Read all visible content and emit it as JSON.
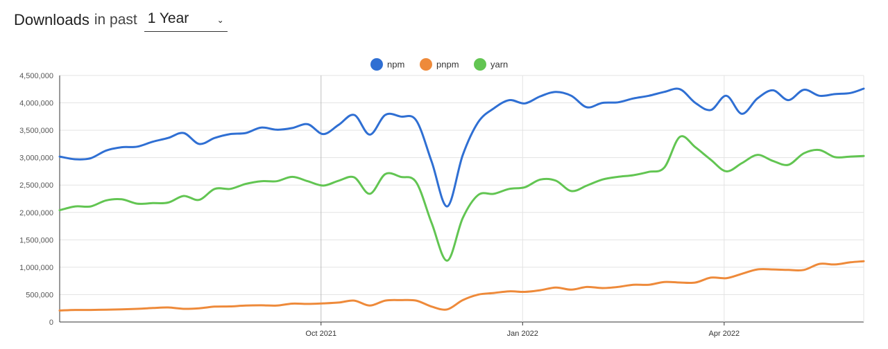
{
  "header": {
    "title": "Downloads",
    "subtitle": "in past",
    "period": {
      "selected": "1 Year"
    }
  },
  "colors": {
    "npm": "#2f6fd3",
    "pnpm": "#ee8a3a",
    "yarn": "#62c552"
  },
  "chart_data": {
    "type": "line",
    "title": "",
    "xlabel": "",
    "ylabel": "",
    "ylim": [
      0,
      4500000
    ],
    "yticks": [
      0,
      500000,
      1000000,
      1500000,
      2000000,
      2500000,
      3000000,
      3500000,
      4000000,
      4500000
    ],
    "ytick_labels": [
      "0",
      "500,000",
      "1,000,000",
      "1,500,000",
      "2,000,000",
      "2,500,000",
      "3,000,000",
      "3,500,000",
      "4,000,000",
      "4,500,000"
    ],
    "xlim": [
      "2021-06-07",
      "2022-06-05"
    ],
    "xticks": [
      {
        "date": "2021-10-03",
        "label": "Oct 2021"
      },
      {
        "date": "2022-01-02",
        "label": "Jan 2022"
      },
      {
        "date": "2022-04-03",
        "label": "Apr 2022"
      }
    ],
    "grid": true,
    "legend": "top-center",
    "x": [
      "2021-06-07",
      "2021-06-14",
      "2021-06-21",
      "2021-06-28",
      "2021-07-05",
      "2021-07-12",
      "2021-07-19",
      "2021-07-26",
      "2021-08-02",
      "2021-08-09",
      "2021-08-16",
      "2021-08-23",
      "2021-08-30",
      "2021-09-06",
      "2021-09-13",
      "2021-09-20",
      "2021-09-27",
      "2021-10-04",
      "2021-10-11",
      "2021-10-18",
      "2021-10-25",
      "2021-11-01",
      "2021-11-08",
      "2021-11-15",
      "2021-11-22",
      "2021-11-29",
      "2021-12-06",
      "2021-12-13",
      "2021-12-20",
      "2021-12-27",
      "2022-01-03",
      "2022-01-10",
      "2022-01-17",
      "2022-01-24",
      "2022-01-31",
      "2022-02-07",
      "2022-02-14",
      "2022-02-21",
      "2022-02-28",
      "2022-03-07",
      "2022-03-14",
      "2022-03-21",
      "2022-03-28",
      "2022-04-04",
      "2022-04-11",
      "2022-04-18",
      "2022-04-25",
      "2022-05-02",
      "2022-05-09",
      "2022-05-16",
      "2022-05-23",
      "2022-05-30",
      "2022-06-05"
    ],
    "series": [
      {
        "name": "npm",
        "values": [
          3020000,
          2970000,
          2990000,
          3130000,
          3190000,
          3200000,
          3290000,
          3360000,
          3450000,
          3250000,
          3360000,
          3430000,
          3450000,
          3550000,
          3510000,
          3540000,
          3610000,
          3430000,
          3600000,
          3780000,
          3420000,
          3780000,
          3750000,
          3680000,
          2920000,
          2110000,
          3050000,
          3650000,
          3900000,
          4050000,
          3990000,
          4120000,
          4200000,
          4130000,
          3920000,
          4000000,
          4010000,
          4080000,
          4130000,
          4200000,
          4250000,
          4000000,
          3870000,
          4130000,
          3800000,
          4080000,
          4230000,
          4050000,
          4240000,
          4130000,
          4160000,
          4180000,
          4260000
        ]
      },
      {
        "name": "pnpm",
        "values": [
          210000,
          220000,
          220000,
          225000,
          230000,
          240000,
          255000,
          265000,
          240000,
          250000,
          280000,
          285000,
          300000,
          305000,
          300000,
          335000,
          330000,
          340000,
          355000,
          390000,
          300000,
          390000,
          400000,
          390000,
          280000,
          230000,
          400000,
          500000,
          530000,
          560000,
          550000,
          580000,
          630000,
          590000,
          640000,
          620000,
          640000,
          680000,
          680000,
          730000,
          720000,
          720000,
          810000,
          800000,
          880000,
          960000,
          960000,
          950000,
          950000,
          1060000,
          1050000,
          1090000,
          1110000
        ]
      },
      {
        "name": "yarn",
        "values": [
          2040000,
          2110000,
          2110000,
          2220000,
          2240000,
          2160000,
          2170000,
          2180000,
          2300000,
          2230000,
          2430000,
          2430000,
          2520000,
          2570000,
          2570000,
          2650000,
          2570000,
          2490000,
          2580000,
          2640000,
          2340000,
          2700000,
          2650000,
          2550000,
          1800000,
          1120000,
          1900000,
          2320000,
          2340000,
          2430000,
          2460000,
          2600000,
          2580000,
          2390000,
          2490000,
          2600000,
          2650000,
          2680000,
          2740000,
          2820000,
          3380000,
          3190000,
          2960000,
          2750000,
          2900000,
          3050000,
          2940000,
          2870000,
          3080000,
          3140000,
          3010000,
          3020000,
          3030000
        ]
      }
    ]
  }
}
